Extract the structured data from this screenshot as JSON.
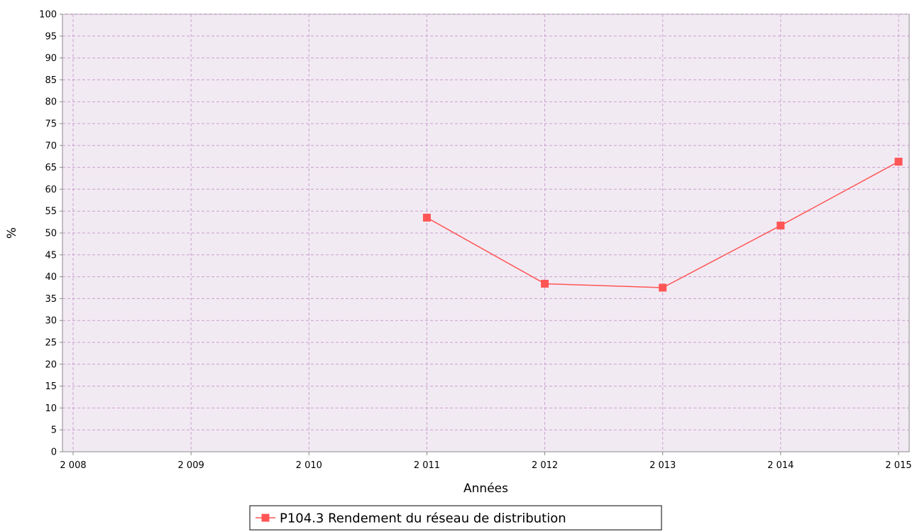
{
  "chart_data": {
    "type": "line",
    "xlabel": "Années",
    "ylabel": "%",
    "x_ticks": [
      "2 008",
      "2 009",
      "2 010",
      "2 011",
      "2 012",
      "2 013",
      "2 014",
      "2 015"
    ],
    "x_range": [
      2008,
      2015
    ],
    "ylim": [
      0,
      100
    ],
    "y_ticks": [
      0,
      5,
      10,
      15,
      20,
      25,
      30,
      35,
      40,
      45,
      50,
      55,
      60,
      65,
      70,
      75,
      80,
      85,
      90,
      95,
      100
    ],
    "grid": true,
    "legend_position": "bottom",
    "series": [
      {
        "name": "P104.3 Rendement du réseau de distribution",
        "color": "#ff5555",
        "marker": "square",
        "x": [
          2011,
          2012,
          2013,
          2014,
          2015
        ],
        "y": [
          53.5,
          38.4,
          37.5,
          51.7,
          66.3
        ]
      }
    ]
  },
  "colors": {
    "plot_background": "#f2eaf3",
    "grid": "#c8a0cc",
    "axis": "#888888",
    "series": "#ff5555"
  }
}
